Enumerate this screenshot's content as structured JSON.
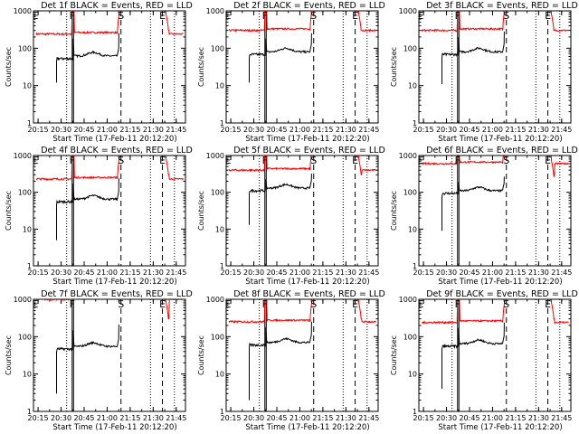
{
  "axis_labels": {
    "xlabel": "Start Time (17-Feb-11 20:12:20)",
    "ylabel": "Counts/sec"
  },
  "y_ticks": [
    {
      "value": 1,
      "label": "1"
    },
    {
      "value": 10,
      "label": "10"
    },
    {
      "value": 100,
      "label": "100"
    },
    {
      "value": 1000,
      "label": "1000"
    }
  ],
  "x_ticks": [
    {
      "value": 20.25,
      "label": "20:15"
    },
    {
      "value": 20.5,
      "label": "20:30"
    },
    {
      "value": 20.75,
      "label": "20:45"
    },
    {
      "value": 21.0,
      "label": "21:00"
    },
    {
      "value": 21.25,
      "label": "21:15"
    },
    {
      "value": 21.5,
      "label": "21:30"
    },
    {
      "value": 21.75,
      "label": "21:45"
    }
  ],
  "colors": {
    "events": "#000000",
    "lld": "#ff0000"
  },
  "chart_data": [
    {
      "title": "Det 1f BLACK = Events, RED = LLD",
      "type": "line",
      "events_level": 62,
      "lld_level": 240,
      "events_start": 12,
      "events_spike": 180,
      "lld_spike": 1000
    },
    {
      "title": "Det 2f BLACK = Events, RED = LLD",
      "type": "line",
      "events_level": 80,
      "lld_level": 300,
      "events_start": 12,
      "events_spike": 180,
      "lld_spike": 1000
    },
    {
      "title": "Det 3f BLACK = Events, RED = LLD",
      "type": "line",
      "events_level": 80,
      "lld_level": 300,
      "events_start": 11,
      "events_spike": 200,
      "lld_spike": 1000
    },
    {
      "title": "Det 4f BLACK = Events, RED = LLD",
      "type": "line",
      "events_level": 65,
      "lld_level": 230,
      "events_start": 5,
      "events_spike": 170,
      "lld_spike": 1000
    },
    {
      "title": "Det 5f BLACK = Events, RED = LLD",
      "type": "line",
      "events_level": 130,
      "lld_level": 400,
      "events_start": 13,
      "events_spike": 230,
      "lld_spike": 1000
    },
    {
      "title": "Det 6f BLACK = Events, RED = LLD",
      "type": "line",
      "events_level": 110,
      "lld_level": 600,
      "events_start": 9,
      "events_spike": 190,
      "lld_spike": 900
    },
    {
      "title": "Det 7f BLACK = Events, RED = LLD",
      "type": "line",
      "events_level": 55,
      "lld_level": 1000,
      "events_start": 3,
      "events_spike": 150,
      "lld_spike": 1000
    },
    {
      "title": "Det 8f BLACK = Events, RED = LLD",
      "type": "line",
      "events_level": 70,
      "lld_level": 250,
      "events_start": 2,
      "events_spike": 180,
      "lld_spike": 1000
    },
    {
      "title": "Det 9f BLACK = Events, RED = LLD",
      "type": "line",
      "events_level": 65,
      "lld_level": 240,
      "events_start": 4,
      "events_spike": 170,
      "lld_spike": 1000
    }
  ],
  "markers": {
    "dotted_lines": [
      20.56,
      21.47,
      21.73
    ],
    "solid_lines": [
      20.62,
      20.635
    ],
    "dashed_lines": [
      21.15,
      21.6
    ],
    "letters": [
      {
        "t": 20.22,
        "text": "E"
      },
      {
        "t": 20.62,
        "text": "F"
      },
      {
        "t": 21.15,
        "text": "S"
      },
      {
        "t": 21.6,
        "text": "E"
      }
    ]
  },
  "x_range": [
    20.2,
    21.85
  ],
  "y_range": [
    1,
    1000
  ]
}
